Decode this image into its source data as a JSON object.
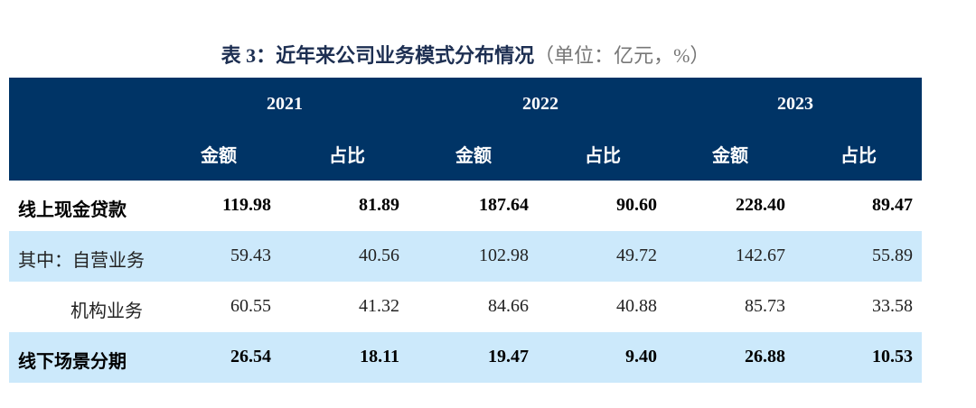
{
  "title": {
    "main": "表 3：近年来公司业务模式分布情况",
    "unit": "（单位：亿元，%）"
  },
  "years": [
    "2021",
    "2022",
    "2023"
  ],
  "subheaders": [
    "金额",
    "占比",
    "金额",
    "占比",
    "金额",
    "占比"
  ],
  "rows": [
    {
      "label": "线上现金贷款",
      "values": [
        "119.98",
        "81.89",
        "187.64",
        "90.60",
        "228.40",
        "89.47"
      ]
    },
    {
      "label": "其中：自营业务",
      "values": [
        "59.43",
        "40.56",
        "102.98",
        "49.72",
        "142.67",
        "55.89"
      ]
    },
    {
      "label": "机构业务",
      "values": [
        "60.55",
        "41.32",
        "84.66",
        "40.88",
        "85.73",
        "33.58"
      ]
    },
    {
      "label": "线下场景分期",
      "values": [
        "26.54",
        "18.11",
        "19.47",
        "9.40",
        "26.88",
        "10.53"
      ]
    }
  ],
  "colors": {
    "header": "#003466",
    "stripe": "#cce9fb"
  }
}
